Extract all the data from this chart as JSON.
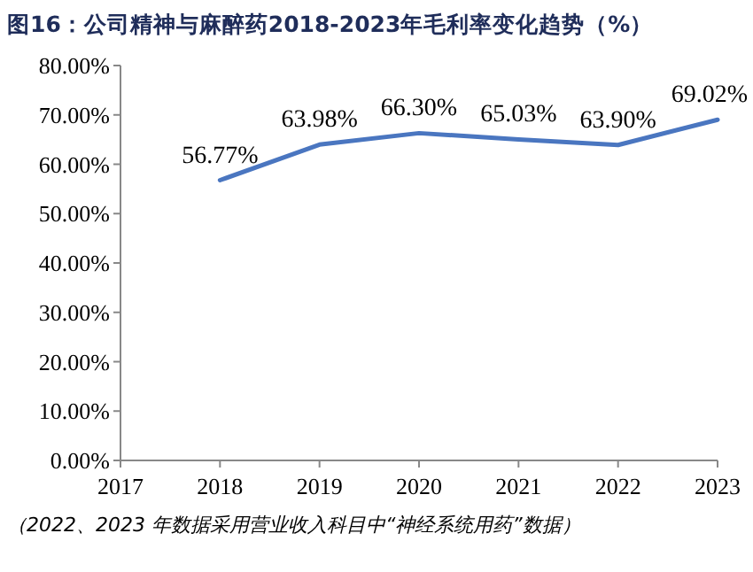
{
  "chart_data": {
    "type": "line",
    "title": "图16：公司精神与麻醉药2018-2023年毛利率变化趋势（%）",
    "x": [
      2018,
      2019,
      2020,
      2021,
      2022,
      2023
    ],
    "series": [
      {
        "color": "#4a76c0",
        "values": [
          56.77,
          63.98,
          66.3,
          65.03,
          63.9,
          69.02
        ],
        "value_labels": [
          "56.77%",
          "63.98%",
          "66.30%",
          "65.03%",
          "63.90%",
          "69.02%"
        ]
      }
    ],
    "xlim": [
      2017,
      2023
    ],
    "xticks": [
      2017,
      2018,
      2019,
      2020,
      2021,
      2022,
      2023
    ],
    "ylim": [
      0,
      80
    ],
    "yticks": [
      {
        "value": 0,
        "label": "0.00%"
      },
      {
        "value": 10,
        "label": "10.00%"
      },
      {
        "value": 20,
        "label": "20.00%"
      },
      {
        "value": 30,
        "label": "30.00%"
      },
      {
        "value": 40,
        "label": "40.00%"
      },
      {
        "value": 50,
        "label": "50.00%"
      },
      {
        "value": 60,
        "label": "60.00%"
      },
      {
        "value": 70,
        "label": "70.00%"
      },
      {
        "value": 80,
        "label": "80.00%"
      }
    ],
    "grid": false,
    "annotations": [
      "（2022、2023 年数据采用营业收入科目中“神经系统用药”数据）"
    ]
  }
}
